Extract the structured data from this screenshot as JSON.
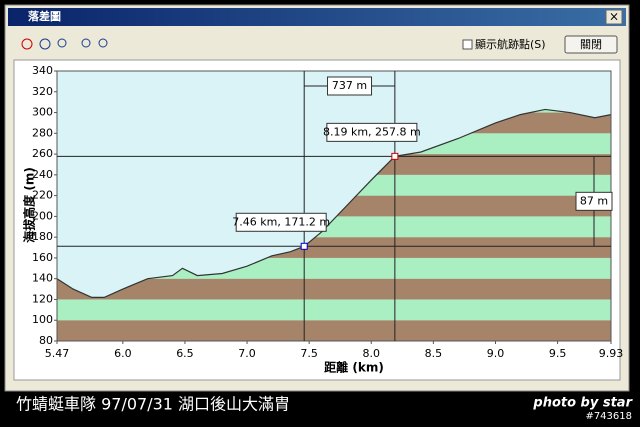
{
  "window": {
    "title": "落差圖",
    "checkbox": "顯示航跡點(S)",
    "button": "關閉"
  },
  "chart_data": {
    "type": "area",
    "x_label": "距離 (km)",
    "y_label": "海拔高度 (m)",
    "x": [
      5.47,
      5.6,
      5.75,
      5.85,
      6.0,
      6.2,
      6.4,
      6.48,
      6.6,
      6.8,
      7.0,
      7.2,
      7.35,
      7.46,
      7.6,
      7.8,
      8.0,
      8.19,
      8.4,
      8.7,
      9.0,
      9.2,
      9.4,
      9.6,
      9.8,
      9.93
    ],
    "values": [
      140,
      130,
      122,
      122,
      130,
      140,
      143,
      150,
      143,
      145,
      152,
      162,
      166,
      171.2,
      185,
      210,
      235,
      257.8,
      262,
      275,
      290,
      298,
      303,
      300,
      295,
      298
    ],
    "xlim": [
      5.47,
      9.93
    ],
    "xticks": [
      5.47,
      {
        "value": 6,
        "label": "6.0"
      },
      6.5,
      {
        "value": 7,
        "label": "7.0"
      },
      7.5,
      {
        "value": 8,
        "label": "8.0"
      },
      8.5,
      {
        "value": 9,
        "label": "9.0"
      },
      9.5,
      9.93
    ],
    "ylim": [
      80,
      340
    ],
    "yticks": [
      80,
      100,
      120,
      140,
      160,
      180,
      200,
      220,
      240,
      260,
      280,
      300,
      320,
      340
    ],
    "colors": {
      "sky": "#d9f3f7",
      "band_a": "#a6846a",
      "band_b": "#a9efc2",
      "line": "#333333"
    },
    "markers": [
      {
        "x": 7.46,
        "y": 171.2,
        "label": "7.46 km, 171.2 m"
      },
      {
        "x": 8.19,
        "y": 257.8,
        "label": "8.19 km, 257.8 m"
      }
    ],
    "distance_label": "737 m",
    "height_label": "87 m"
  },
  "caption": {
    "text": "竹蜻蜓車隊 97/07/31 湖口後山大滿胄",
    "credit": "photo by star",
    "id": "#743618"
  }
}
